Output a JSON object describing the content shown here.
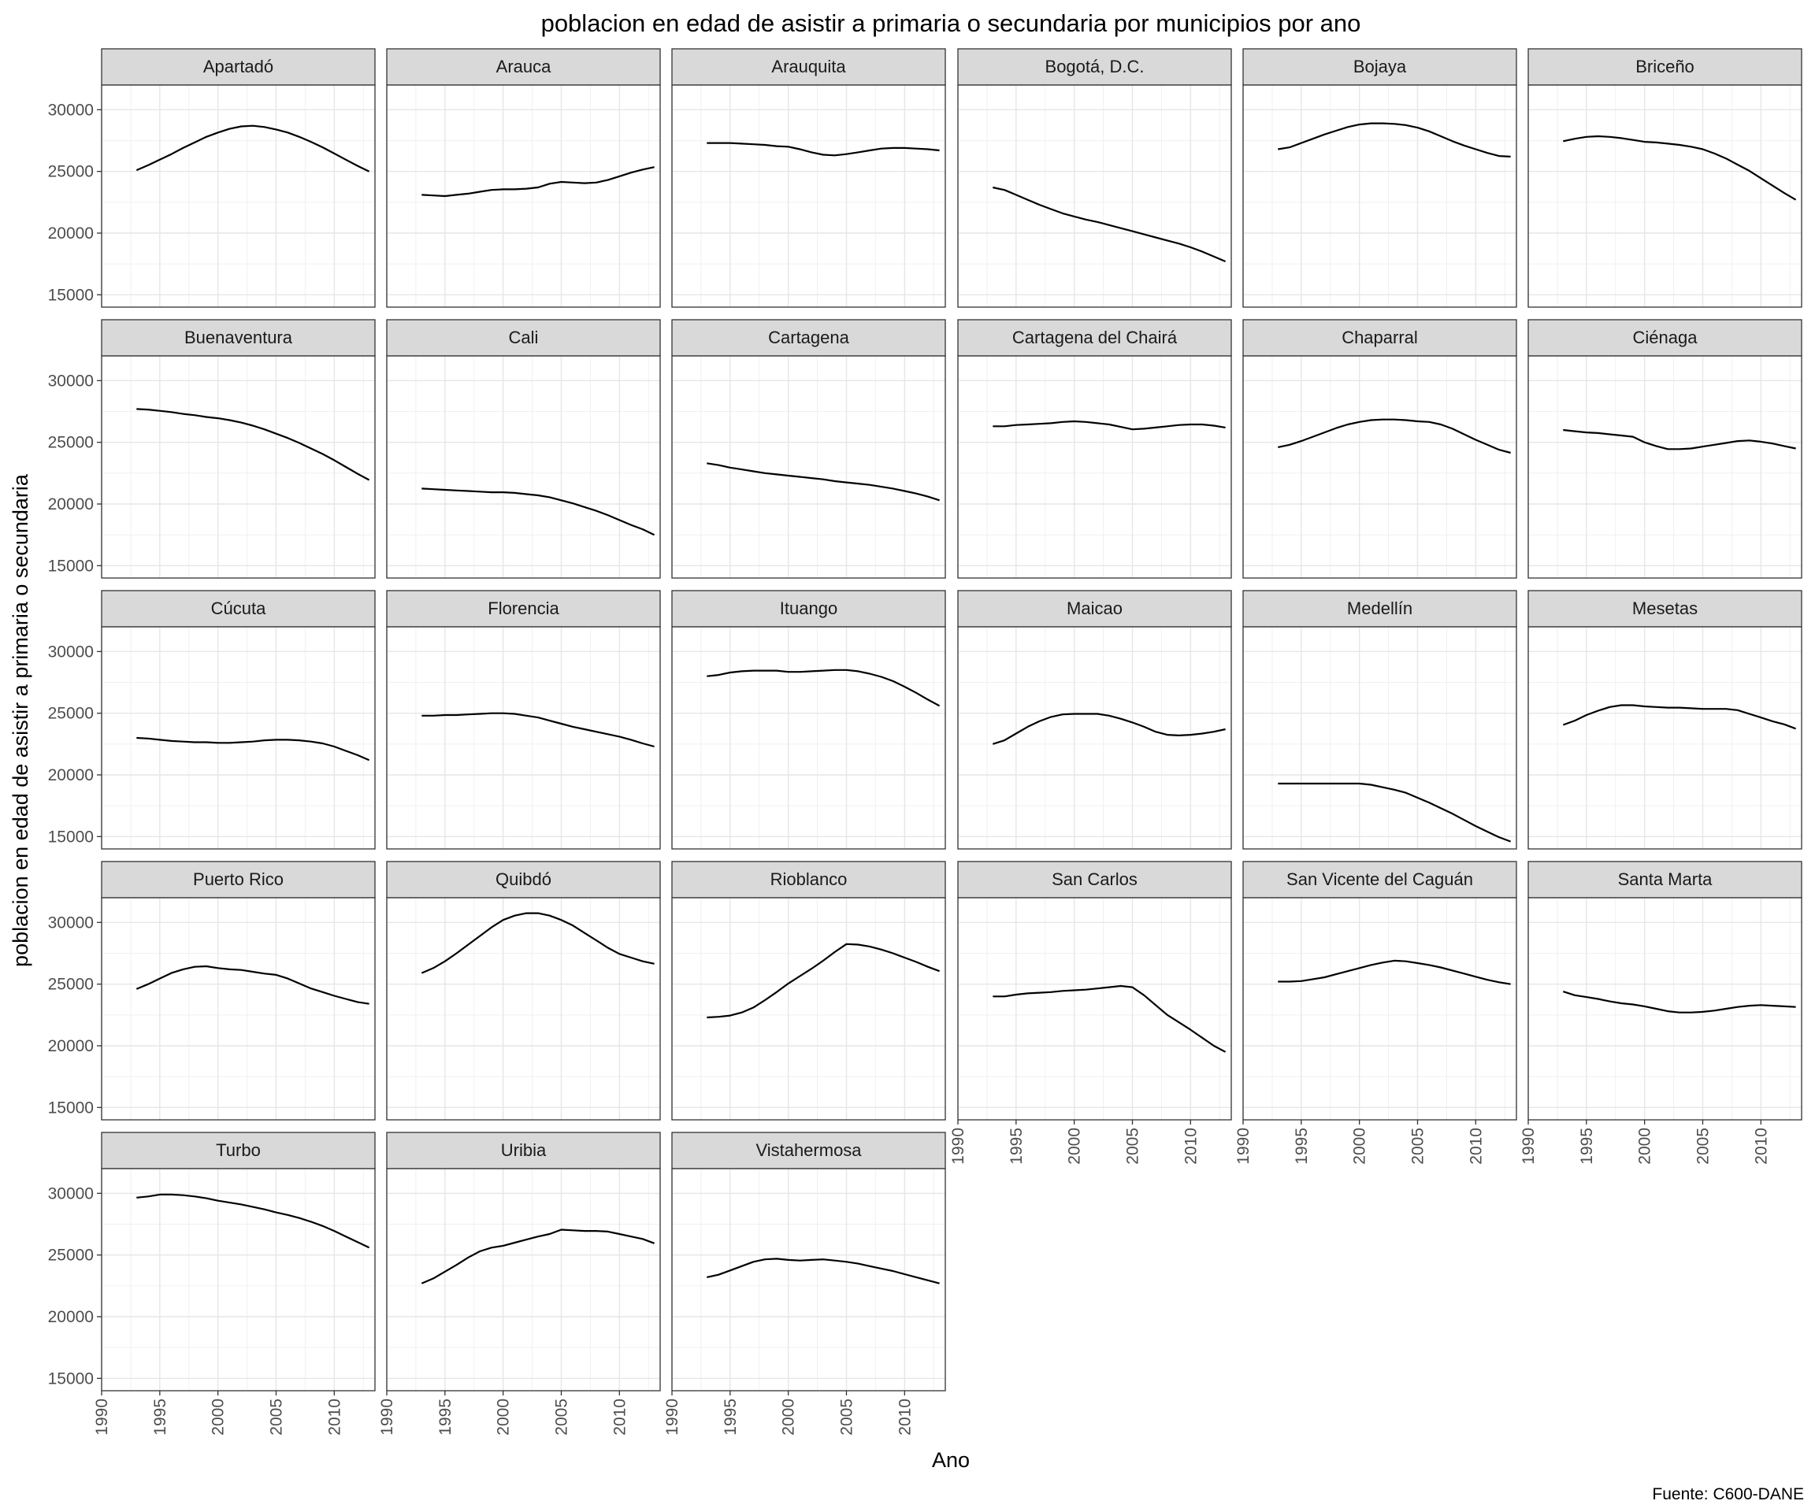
{
  "chart_data": {
    "type": "line",
    "title": "poblacion en edad de asistir a primaria o secundaria por municipios por ano",
    "xlabel": "Ano",
    "ylabel": "poblacion en edad de asistir a primaria o secundaria",
    "caption": "Fuente: C600-DANE",
    "xlim": [
      1990,
      2013.5
    ],
    "ylim": [
      14000,
      32000
    ],
    "x_ticks": [
      "1990",
      "1995",
      "2000",
      "2005",
      "2010"
    ],
    "y_ticks": [
      "15000",
      "20000",
      "25000",
      "30000"
    ],
    "grid": true,
    "legend": "none",
    "x": [
      1993,
      1994,
      1995,
      1996,
      1997,
      1998,
      1999,
      2000,
      2001,
      2002,
      2003,
      2004,
      2005,
      2006,
      2007,
      2008,
      2009,
      2010,
      2011,
      2012,
      2013
    ],
    "series": [
      {
        "name": "Apartadó",
        "values": [
          25100,
          25500,
          25950,
          26400,
          26900,
          27350,
          27800,
          28150,
          28450,
          28650,
          28700,
          28600,
          28400,
          28150,
          27800,
          27400,
          26950,
          26450,
          25950,
          25450,
          25000
        ]
      },
      {
        "name": "Arauca",
        "values": [
          23100,
          23050,
          23000,
          23100,
          23200,
          23350,
          23500,
          23550,
          23550,
          23600,
          23700,
          24000,
          24150,
          24100,
          24050,
          24100,
          24300,
          24600,
          24900,
          25150,
          25350
        ]
      },
      {
        "name": "Arauquita",
        "values": [
          27300,
          27300,
          27300,
          27250,
          27200,
          27150,
          27050,
          27000,
          26800,
          26550,
          26350,
          26300,
          26400,
          26550,
          26700,
          26850,
          26900,
          26900,
          26850,
          26800,
          26700
        ]
      },
      {
        "name": "Bogotá, D.C.",
        "values": [
          23700,
          23500,
          23100,
          22700,
          22300,
          21950,
          21600,
          21350,
          21100,
          20900,
          20650,
          20400,
          20150,
          19900,
          19650,
          19400,
          19150,
          18850,
          18500,
          18100,
          17700
        ]
      },
      {
        "name": "Bojaya",
        "values": [
          26800,
          26950,
          27300,
          27650,
          28000,
          28300,
          28600,
          28800,
          28900,
          28900,
          28850,
          28750,
          28550,
          28250,
          27850,
          27450,
          27100,
          26800,
          26500,
          26250,
          26200
        ]
      },
      {
        "name": "Briceño",
        "values": [
          27450,
          27650,
          27800,
          27850,
          27800,
          27700,
          27550,
          27400,
          27350,
          27250,
          27150,
          27000,
          26800,
          26450,
          26050,
          25550,
          25050,
          24450,
          23850,
          23250,
          22700
        ]
      },
      {
        "name": "Buenaventura",
        "values": [
          27700,
          27650,
          27550,
          27450,
          27300,
          27200,
          27050,
          26950,
          26800,
          26600,
          26350,
          26050,
          25700,
          25350,
          24950,
          24500,
          24050,
          23550,
          23000,
          22450,
          21950
        ]
      },
      {
        "name": "Cali",
        "values": [
          21250,
          21200,
          21150,
          21100,
          21050,
          21000,
          20950,
          20950,
          20900,
          20800,
          20700,
          20550,
          20300,
          20050,
          19750,
          19450,
          19100,
          18700,
          18300,
          17950,
          17500
        ]
      },
      {
        "name": "Cartagena",
        "values": [
          23300,
          23150,
          22950,
          22800,
          22650,
          22500,
          22400,
          22300,
          22200,
          22100,
          22000,
          21850,
          21750,
          21650,
          21550,
          21400,
          21250,
          21050,
          20850,
          20600,
          20300
        ]
      },
      {
        "name": "Cartagena del Chairá",
        "values": [
          26300,
          26300,
          26400,
          26450,
          26500,
          26550,
          26650,
          26700,
          26650,
          26550,
          26450,
          26250,
          26050,
          26100,
          26200,
          26300,
          26400,
          26450,
          26450,
          26350,
          26200
        ]
      },
      {
        "name": "Chaparral",
        "values": [
          24600,
          24800,
          25100,
          25450,
          25800,
          26150,
          26450,
          26650,
          26800,
          26850,
          26850,
          26800,
          26700,
          26650,
          26450,
          26100,
          25650,
          25200,
          24800,
          24400,
          24150
        ]
      },
      {
        "name": "Ciénaga",
        "values": [
          26000,
          25900,
          25800,
          25750,
          25650,
          25550,
          25450,
          25000,
          24700,
          24450,
          24450,
          24500,
          24650,
          24800,
          24950,
          25100,
          25150,
          25050,
          24900,
          24700,
          24500
        ]
      },
      {
        "name": "Cúcuta",
        "values": [
          23000,
          22950,
          22850,
          22750,
          22700,
          22650,
          22650,
          22600,
          22600,
          22650,
          22700,
          22800,
          22850,
          22850,
          22800,
          22700,
          22550,
          22300,
          21950,
          21600,
          21200
        ]
      },
      {
        "name": "Florencia",
        "values": [
          24800,
          24800,
          24850,
          24850,
          24900,
          24950,
          25000,
          25000,
          24950,
          24800,
          24650,
          24400,
          24150,
          23900,
          23700,
          23500,
          23300,
          23100,
          22850,
          22550,
          22300
        ]
      },
      {
        "name": "Ituango",
        "values": [
          28000,
          28100,
          28300,
          28400,
          28450,
          28450,
          28450,
          28350,
          28350,
          28400,
          28450,
          28500,
          28500,
          28400,
          28200,
          27950,
          27600,
          27150,
          26650,
          26100,
          25600
        ]
      },
      {
        "name": "Maicao",
        "values": [
          22500,
          22800,
          23350,
          23900,
          24350,
          24700,
          24900,
          24950,
          24950,
          24950,
          24800,
          24550,
          24250,
          23900,
          23500,
          23250,
          23200,
          23250,
          23350,
          23500,
          23700
        ]
      },
      {
        "name": "Medellín",
        "values": [
          19300,
          19300,
          19300,
          19300,
          19300,
          19300,
          19300,
          19300,
          19200,
          19000,
          18800,
          18550,
          18150,
          17750,
          17300,
          16850,
          16350,
          15850,
          15400,
          14950,
          14600
        ]
      },
      {
        "name": "Mesetas",
        "values": [
          24050,
          24400,
          24850,
          25200,
          25500,
          25650,
          25650,
          25550,
          25500,
          25450,
          25450,
          25400,
          25350,
          25350,
          25350,
          25250,
          24950,
          24650,
          24350,
          24100,
          23750
        ]
      },
      {
        "name": "Puerto Rico",
        "values": [
          24600,
          25000,
          25450,
          25900,
          26200,
          26400,
          26450,
          26300,
          26200,
          26150,
          26000,
          25850,
          25750,
          25450,
          25050,
          24650,
          24350,
          24050,
          23800,
          23550,
          23400
        ]
      },
      {
        "name": "Quibdó",
        "values": [
          25900,
          26300,
          26850,
          27500,
          28200,
          28900,
          29600,
          30200,
          30550,
          30750,
          30750,
          30550,
          30200,
          29750,
          29150,
          28550,
          27950,
          27450,
          27150,
          26850,
          26650
        ]
      },
      {
        "name": "Rioblanco",
        "values": [
          22300,
          22350,
          22450,
          22700,
          23100,
          23700,
          24350,
          25050,
          25650,
          26250,
          26900,
          27600,
          28250,
          28200,
          28050,
          27800,
          27500,
          27150,
          26800,
          26400,
          26050
        ]
      },
      {
        "name": "San Carlos",
        "values": [
          24000,
          24000,
          24150,
          24250,
          24300,
          24350,
          24450,
          24500,
          24550,
          24650,
          24750,
          24850,
          24750,
          24100,
          23300,
          22500,
          21900,
          21300,
          20650,
          20000,
          19500
        ]
      },
      {
        "name": "San Vicente del Caguán",
        "values": [
          25200,
          25200,
          25250,
          25400,
          25550,
          25800,
          26050,
          26300,
          26550,
          26750,
          26900,
          26850,
          26700,
          26550,
          26350,
          26100,
          25850,
          25600,
          25350,
          25150,
          25000
        ]
      },
      {
        "name": "Santa Marta",
        "values": [
          24400,
          24100,
          23950,
          23800,
          23600,
          23450,
          23350,
          23200,
          23000,
          22800,
          22700,
          22700,
          22750,
          22850,
          23000,
          23150,
          23250,
          23300,
          23250,
          23200,
          23150
        ]
      },
      {
        "name": "Turbo",
        "values": [
          29650,
          29750,
          29900,
          29900,
          29850,
          29750,
          29600,
          29400,
          29250,
          29100,
          28900,
          28700,
          28450,
          28250,
          28000,
          27700,
          27350,
          26950,
          26500,
          26050,
          25600
        ]
      },
      {
        "name": "Uribia",
        "values": [
          22700,
          23100,
          23650,
          24200,
          24800,
          25300,
          25600,
          25750,
          26000,
          26250,
          26500,
          26700,
          27050,
          27000,
          26950,
          26950,
          26900,
          26700,
          26500,
          26300,
          25950
        ]
      },
      {
        "name": "Vistahermosa",
        "values": [
          23200,
          23400,
          23750,
          24100,
          24450,
          24650,
          24700,
          24600,
          24550,
          24600,
          24650,
          24550,
          24450,
          24300,
          24100,
          23900,
          23700,
          23450,
          23200,
          22950,
          22700
        ]
      }
    ]
  }
}
